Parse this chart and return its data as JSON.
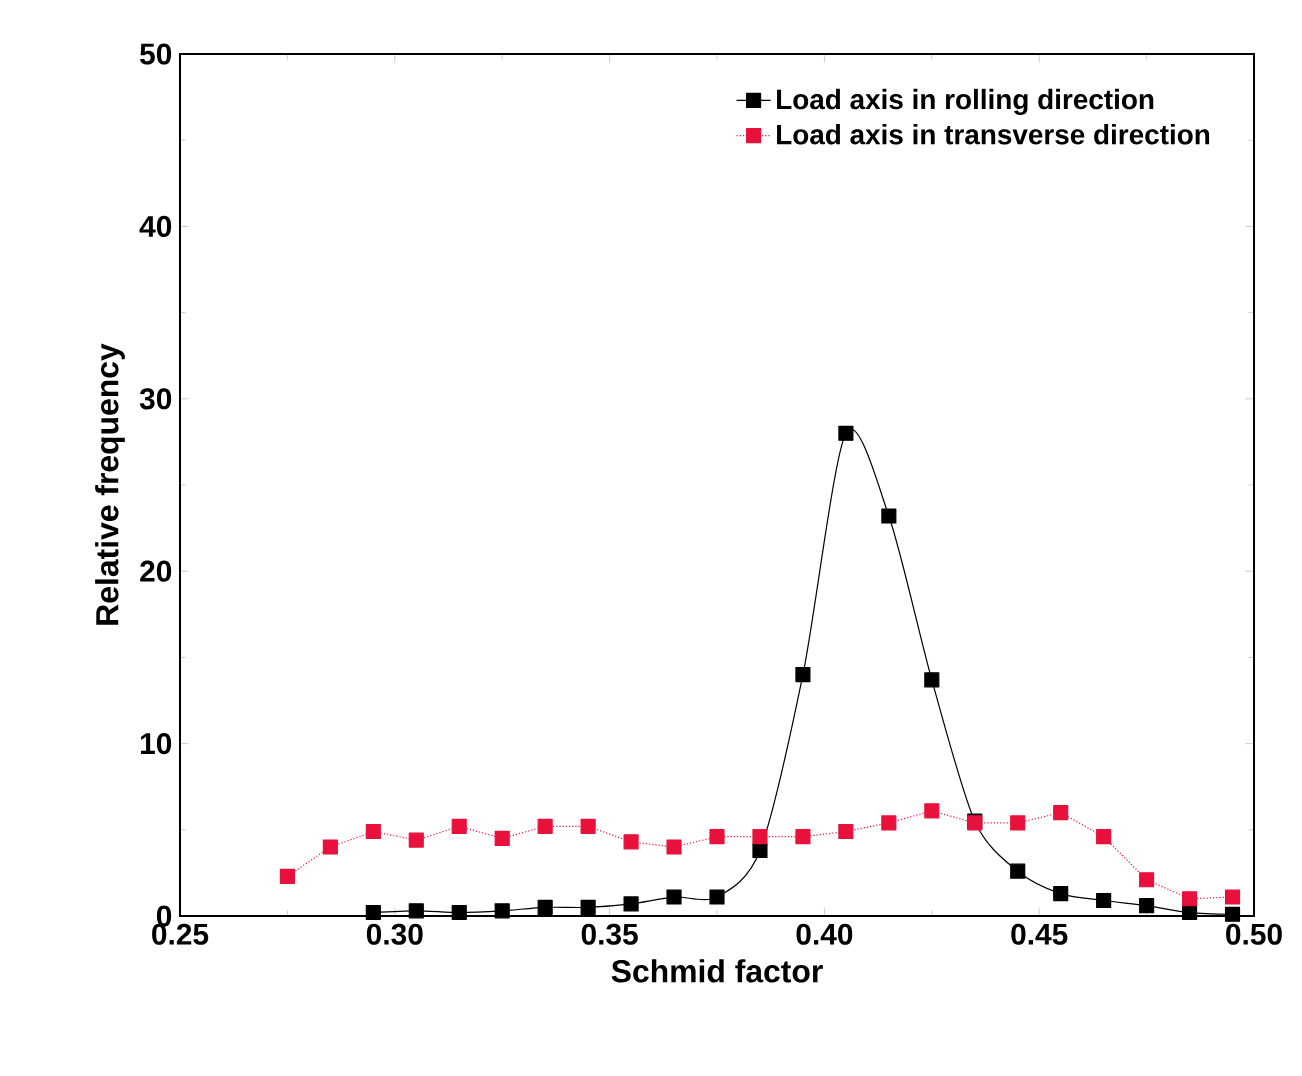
{
  "chart_data": {
    "type": "line",
    "xlabel": "Schmid factor",
    "ylabel": "Relative frequency",
    "xlim": [
      0.25,
      0.5
    ],
    "ylim": [
      0,
      50
    ],
    "xticks": [
      {
        "value": 0.25,
        "label": "0.25"
      },
      {
        "value": 0.3,
        "label": "0.30"
      },
      {
        "value": 0.35,
        "label": "0.35"
      },
      {
        "value": 0.4,
        "label": "0.40"
      },
      {
        "value": 0.45,
        "label": "0.45"
      },
      {
        "value": 0.5,
        "label": "0.50"
      }
    ],
    "yticks": [
      0,
      10,
      20,
      30,
      40,
      50
    ],
    "legend": "top right",
    "marker": "square",
    "grid": false,
    "series": [
      {
        "name": "Load axis in rolling direction",
        "color": "#000000",
        "line_style": "solid",
        "x": [
          0.295,
          0.305,
          0.315,
          0.325,
          0.335,
          0.345,
          0.355,
          0.365,
          0.375,
          0.385,
          0.395,
          0.405,
          0.415,
          0.425,
          0.435,
          0.445,
          0.455,
          0.465,
          0.475,
          0.485,
          0.495
        ],
        "values": [
          0.2,
          0.3,
          0.2,
          0.3,
          0.5,
          0.5,
          0.7,
          1.1,
          1.1,
          3.8,
          14,
          28,
          23.2,
          13.7,
          5.5,
          2.6,
          1.3,
          0.9,
          0.6,
          0.2,
          0.1
        ]
      },
      {
        "name": "Load axis in transverse direction",
        "color": "#e8113c",
        "line_style": "dotted",
        "x": [
          0.275,
          0.285,
          0.295,
          0.305,
          0.315,
          0.325,
          0.335,
          0.345,
          0.355,
          0.365,
          0.375,
          0.385,
          0.395,
          0.405,
          0.415,
          0.425,
          0.435,
          0.445,
          0.455,
          0.465,
          0.475,
          0.485,
          0.495
        ],
        "values": [
          2.3,
          4,
          4.9,
          4.4,
          5.2,
          4.5,
          5.2,
          5.2,
          4.3,
          4,
          4.6,
          4.6,
          4.6,
          4.9,
          5.4,
          6.1,
          5.4,
          5.4,
          6,
          4.6,
          2.1,
          1.0,
          1.1
        ]
      }
    ]
  }
}
